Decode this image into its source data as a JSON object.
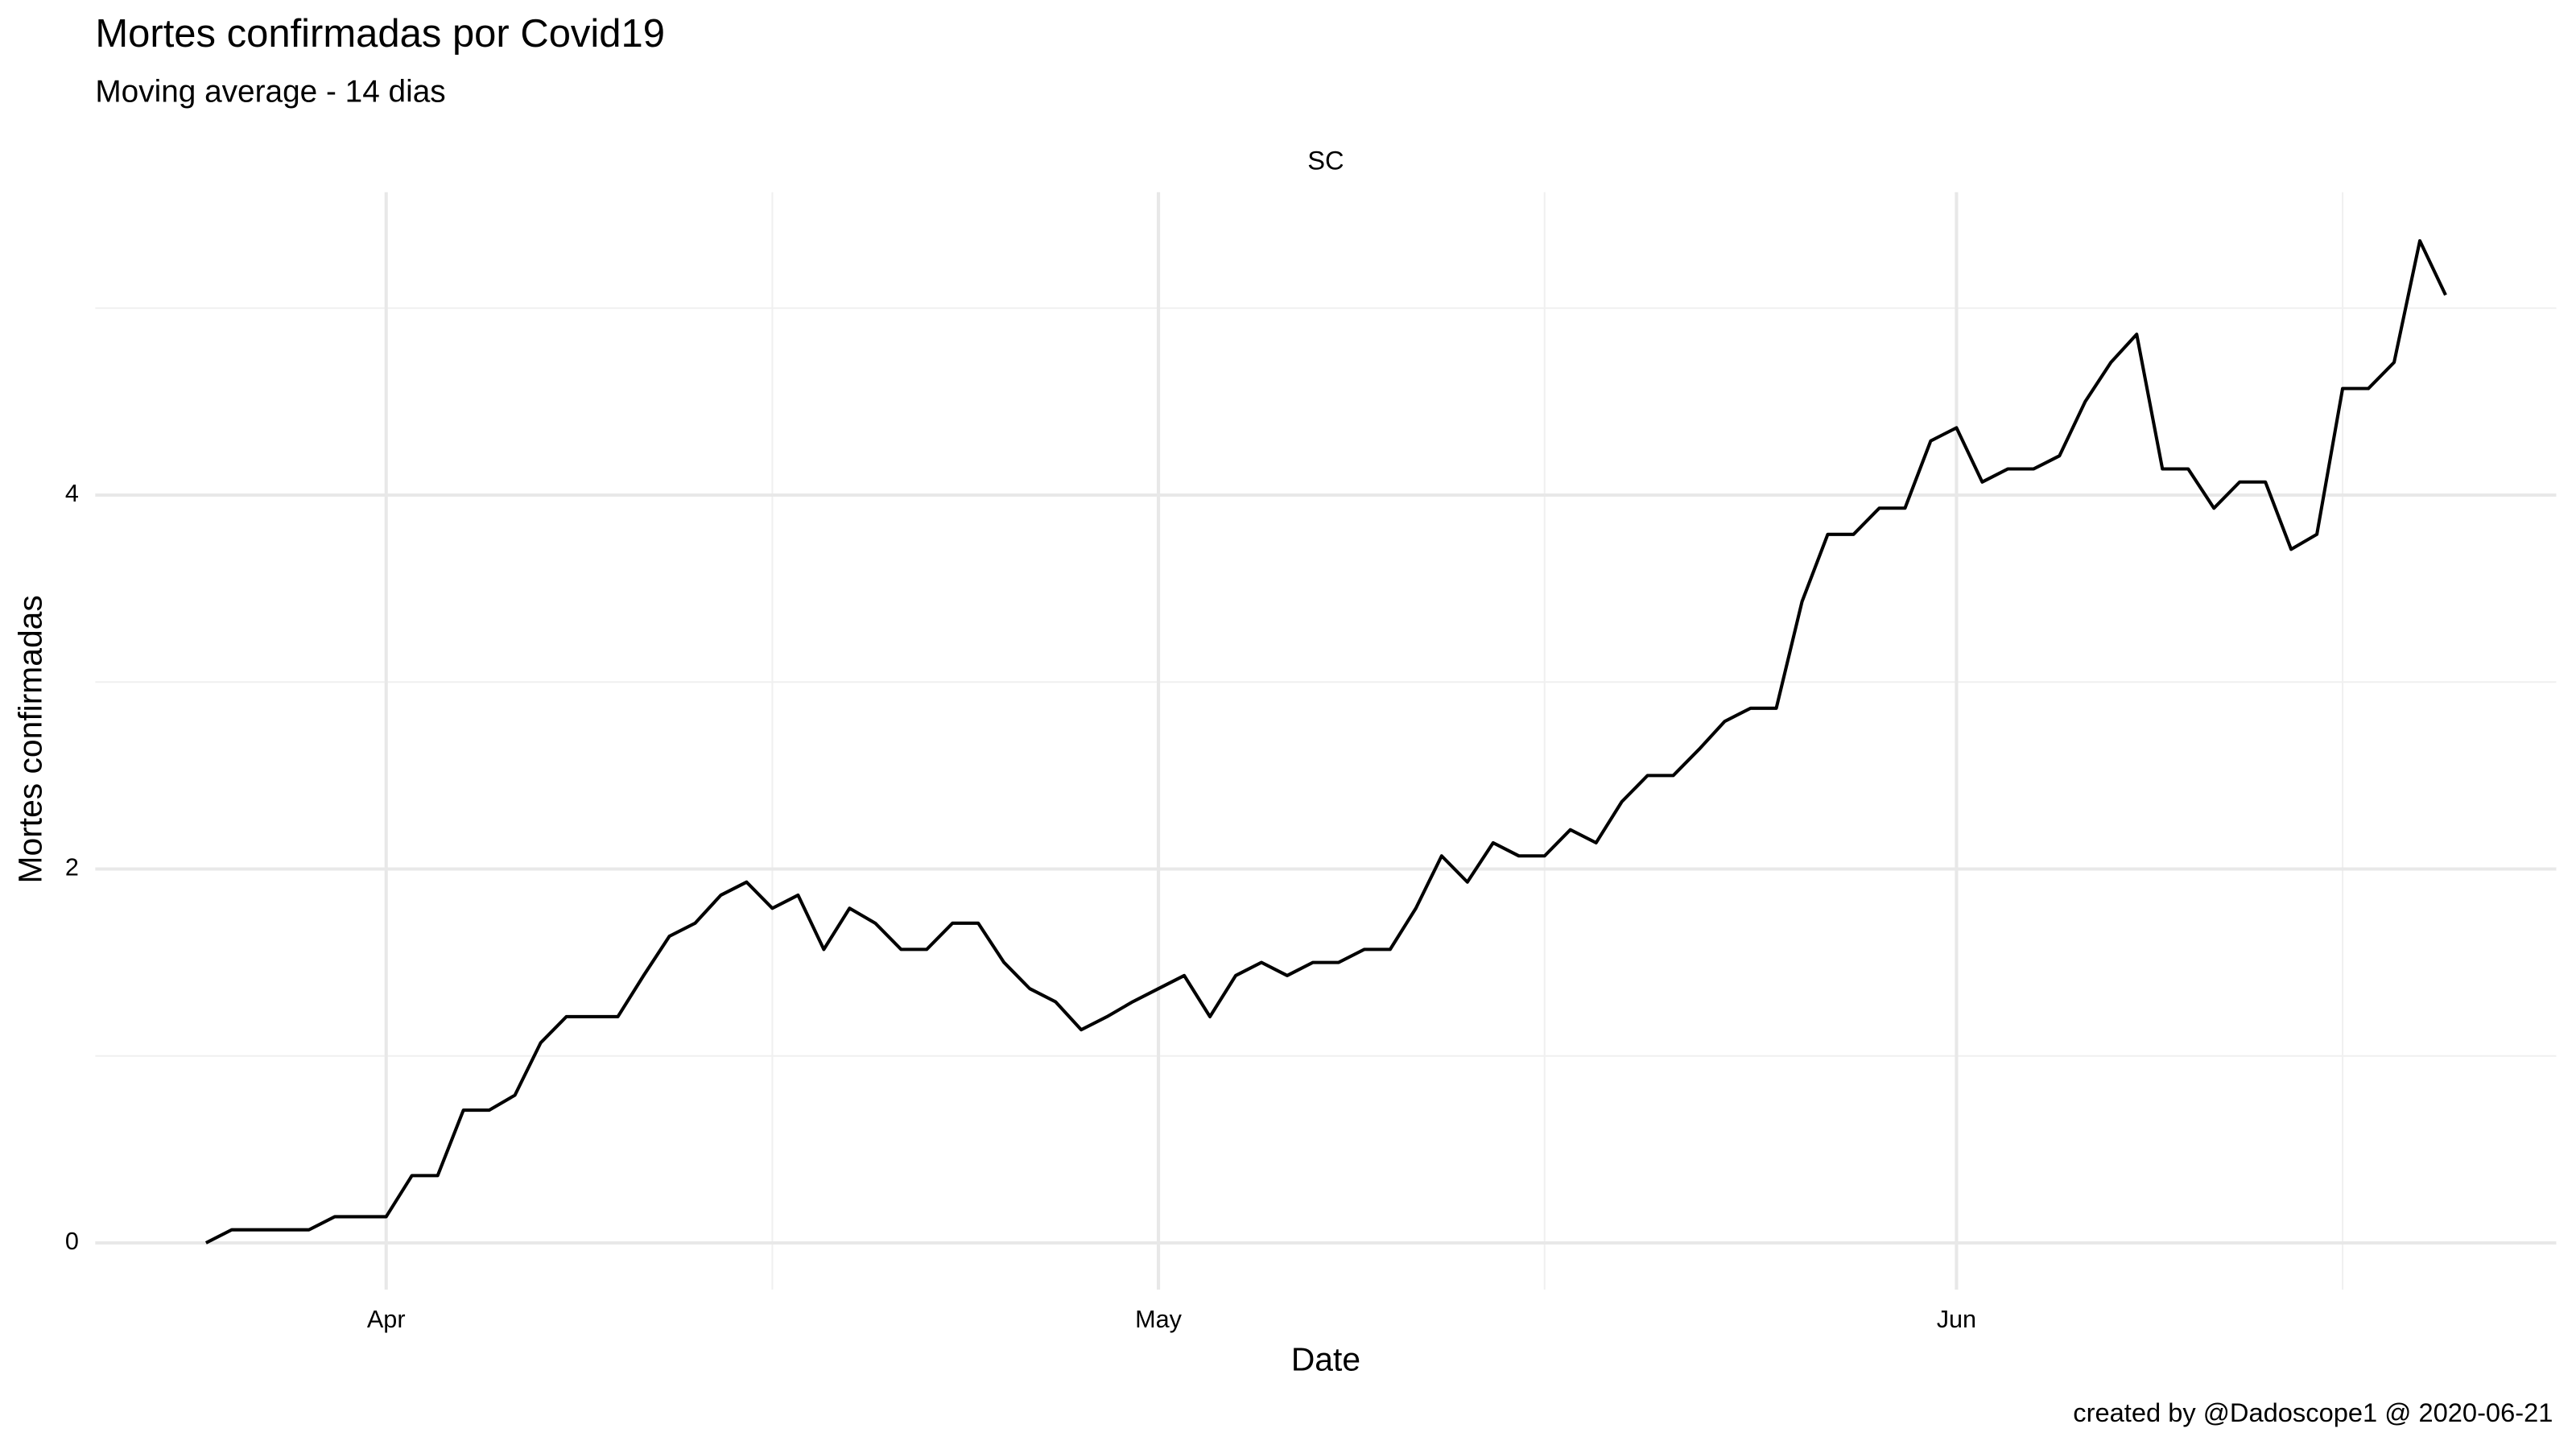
{
  "chart_data": {
    "type": "line",
    "title": "Mortes confirmadas por Covid19",
    "subtitle": "Moving average - 14 dias",
    "facet": "SC",
    "xlabel": "Date",
    "ylabel": "Mortes confirmadas",
    "caption": "created by @Dadoscope1 @ 2020-06-21",
    "x": [
      -7,
      -6,
      -5,
      -4,
      -3,
      -2,
      -1,
      0,
      1,
      2,
      3,
      4,
      5,
      6,
      7,
      8,
      9,
      10,
      11,
      12,
      13,
      14,
      15,
      16,
      17,
      18,
      19,
      20,
      21,
      22,
      23,
      24,
      25,
      26,
      27,
      28,
      29,
      30,
      31,
      32,
      33,
      34,
      35,
      36,
      37,
      38,
      39,
      40,
      41,
      42,
      43,
      44,
      45,
      46,
      47,
      48,
      49,
      50,
      51,
      52,
      53,
      54,
      55,
      56,
      57,
      58,
      59,
      60,
      61,
      62,
      63,
      64,
      65,
      66,
      67,
      68,
      69,
      70,
      71,
      72,
      73,
      74,
      75,
      76,
      77,
      78,
      79,
      80
    ],
    "values": [
      0,
      0.07,
      0.07,
      0.07,
      0.07,
      0.14,
      0.14,
      0.14,
      0.36,
      0.36,
      0.71,
      0.71,
      0.79,
      1.07,
      1.21,
      1.21,
      1.21,
      1.43,
      1.64,
      1.71,
      1.86,
      1.93,
      1.79,
      1.86,
      1.57,
      1.79,
      1.71,
      1.57,
      1.57,
      1.71,
      1.71,
      1.5,
      1.36,
      1.29,
      1.14,
      1.21,
      1.29,
      1.36,
      1.43,
      1.21,
      1.43,
      1.5,
      1.43,
      1.5,
      1.5,
      1.57,
      1.57,
      1.79,
      2.07,
      1.93,
      2.14,
      2.07,
      2.07,
      2.21,
      2.14,
      2.36,
      2.5,
      2.5,
      2.64,
      2.79,
      2.86,
      2.86,
      3.43,
      3.79,
      3.79,
      3.93,
      3.93,
      4.29,
      4.36,
      4.07,
      4.14,
      4.14,
      4.21,
      4.5,
      4.71,
      4.86,
      4.14,
      4.14,
      3.93,
      4.07,
      4.07,
      3.71,
      3.79,
      4.57,
      4.57,
      4.71,
      5.36,
      5.07
    ],
    "color": "#000000",
    "xlim": [
      -11.3,
      84.3
    ],
    "ylim": [
      -0.25,
      5.62
    ],
    "xticks": [
      {
        "value": 0,
        "label": "Apr"
      },
      {
        "value": 30,
        "label": "May"
      },
      {
        "value": 61,
        "label": "Jun"
      }
    ],
    "yticks": [
      0,
      2,
      4
    ],
    "x_minor_grid": [
      15,
      45,
      76
    ],
    "y_minor_grid": [
      1,
      3,
      5
    ],
    "grid": true
  }
}
